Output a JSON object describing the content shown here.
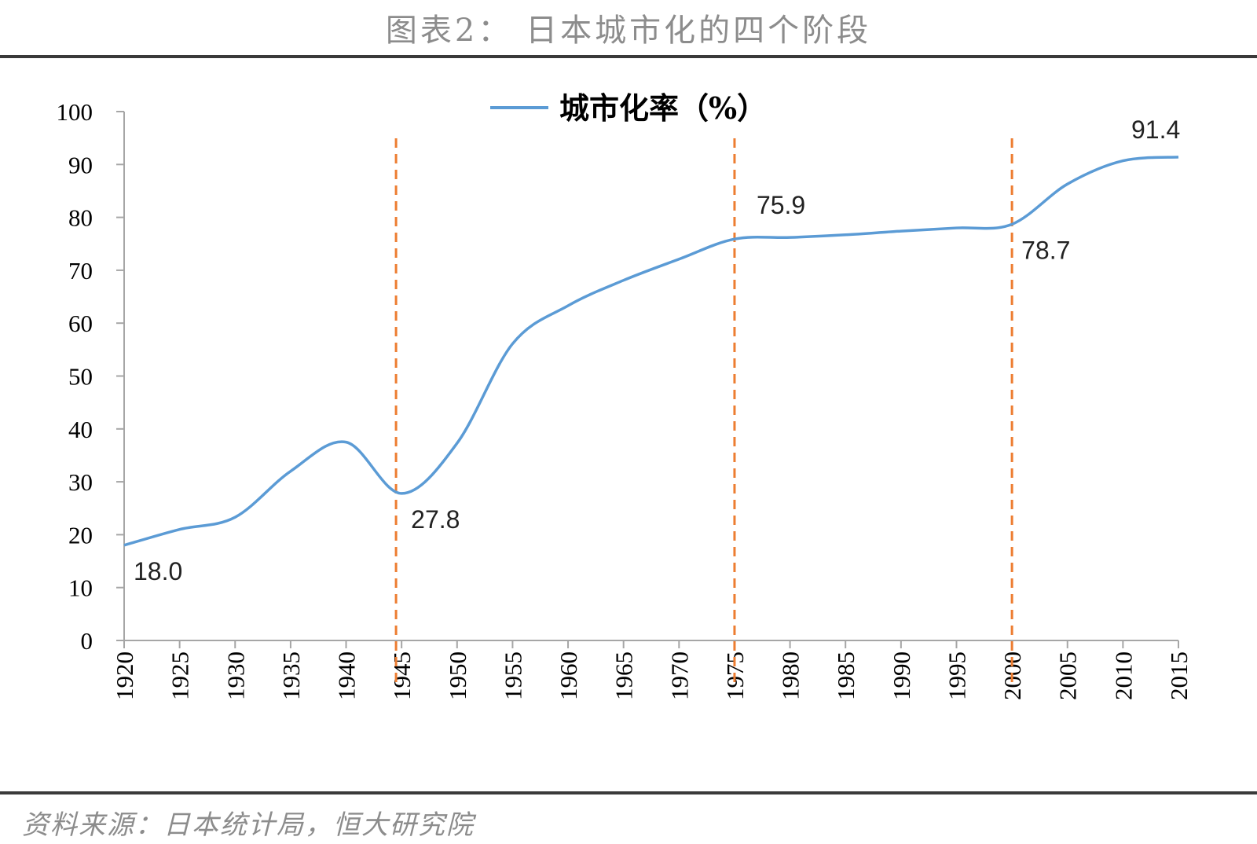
{
  "header": {
    "title": "图表2： 日本城市化的四个阶段"
  },
  "footer": {
    "source": "资料来源：日本统计局，恒大研究院"
  },
  "chart_data": {
    "type": "line",
    "title": "图表2： 日本城市化的四个阶段",
    "xlabel": "",
    "ylabel": "",
    "ylim": [
      0,
      100
    ],
    "yticks": [
      0,
      10,
      20,
      30,
      40,
      50,
      60,
      70,
      80,
      90,
      100
    ],
    "x": [
      1920,
      1925,
      1930,
      1935,
      1940,
      1945,
      1950,
      1955,
      1960,
      1965,
      1970,
      1975,
      1980,
      1985,
      1990,
      1995,
      2000,
      2005,
      2010,
      2015
    ],
    "series": [
      {
        "name": "城市化率（%）",
        "color": "#5b9bd5",
        "values": [
          18.0,
          21.0,
          23.3,
          32.0,
          37.5,
          27.8,
          37.3,
          56.1,
          63.3,
          68.1,
          72.1,
          75.9,
          76.2,
          76.7,
          77.4,
          78.0,
          78.7,
          86.3,
          90.7,
          91.4
        ]
      }
    ],
    "data_labels": [
      {
        "x": 1920,
        "text": "18.0",
        "position": "below-right"
      },
      {
        "x": 1945,
        "text": "27.8",
        "position": "below-right"
      },
      {
        "x": 1975,
        "text": "75.9",
        "position": "above-right"
      },
      {
        "x": 2000,
        "text": "78.7",
        "position": "below-right"
      },
      {
        "x": 2015,
        "text": "91.4",
        "position": "above"
      }
    ],
    "stage_dividers": [
      1944.5,
      1975,
      2000
    ],
    "divider_color": "#ed7d31",
    "legend": {
      "position": "top-center"
    },
    "grid": false
  }
}
